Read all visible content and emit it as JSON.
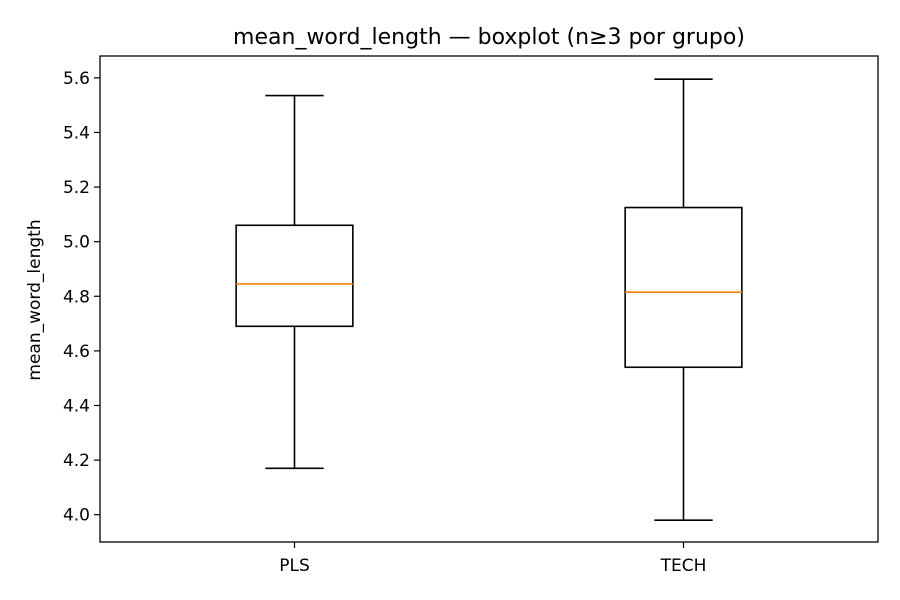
{
  "chart_data": {
    "type": "boxplot",
    "title": "mean_word_length — boxplot (n≥3 por grupo)",
    "xlabel": "",
    "ylabel": "mean_word_length",
    "ylim": [
      3.9,
      5.68
    ],
    "yticks": [
      4.0,
      4.2,
      4.4,
      4.6,
      4.8,
      5.0,
      5.2,
      5.4,
      5.6
    ],
    "ytick_labels": [
      "4.0",
      "4.2",
      "4.4",
      "4.6",
      "4.8",
      "5.0",
      "5.2",
      "5.4",
      "5.6"
    ],
    "categories": [
      "PLS",
      "TECH"
    ],
    "boxes": [
      {
        "label": "PLS",
        "whisker_low": 4.17,
        "q1": 4.69,
        "median": 4.845,
        "q3": 5.06,
        "whisker_high": 5.535
      },
      {
        "label": "TECH",
        "whisker_low": 3.98,
        "q1": 4.54,
        "median": 4.815,
        "q3": 5.125,
        "whisker_high": 5.595
      }
    ],
    "grid": false,
    "colors": {
      "box": "#000000",
      "median": "#ff7f0e",
      "axes": "#000000",
      "background": "#ffffff"
    }
  }
}
